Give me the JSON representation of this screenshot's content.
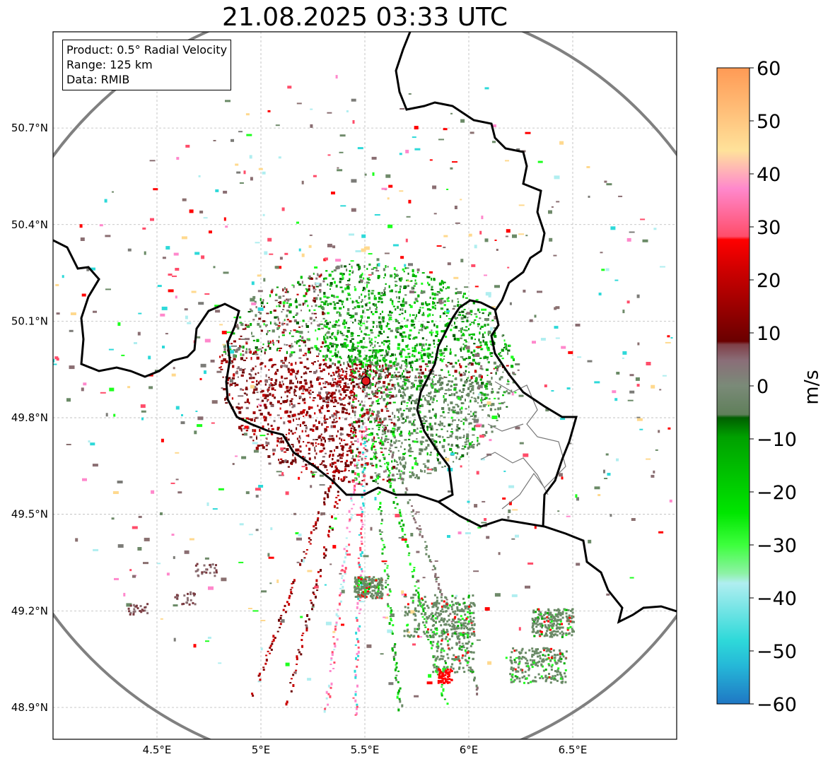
{
  "title": "21.08.2025 03:33 UTC",
  "info": {
    "product": "Product: 0.5° Radial Velocity",
    "range": "Range: 125 km",
    "source": "Data: RMIB"
  },
  "map": {
    "lon_range": [
      4.0,
      7.0
    ],
    "lat_range": [
      48.8,
      51.0
    ],
    "x_ticks": [
      {
        "value": 4.5,
        "label": "4.5°E"
      },
      {
        "value": 5.0,
        "label": "5°E"
      },
      {
        "value": 5.5,
        "label": "5.5°E"
      },
      {
        "value": 6.0,
        "label": "6°E"
      },
      {
        "value": 6.5,
        "label": "6.5°E"
      }
    ],
    "y_ticks": [
      {
        "value": 48.9,
        "label": "48.9°N"
      },
      {
        "value": 49.2,
        "label": "49.2°N"
      },
      {
        "value": 49.5,
        "label": "49.5°N"
      },
      {
        "value": 49.8,
        "label": "49.8°N"
      },
      {
        "value": 50.1,
        "label": "50.1°N"
      },
      {
        "value": 50.4,
        "label": "50.4°N"
      },
      {
        "value": 50.7,
        "label": "50.7°N"
      }
    ],
    "radar_site": {
      "lon": 5.505,
      "lat": 49.914
    },
    "range_km": 125
  },
  "colorbar": {
    "label": "m/s",
    "min": -60,
    "max": 60,
    "ticks": [
      "60",
      "50",
      "40",
      "30",
      "20",
      "10",
      "0",
      "−10",
      "−20",
      "−30",
      "−40",
      "−50",
      "−60"
    ],
    "colors": {
      "neg60": "#1f77c4",
      "neg50": "#2ed9d9",
      "neg40": "#b0eef0",
      "neg35": "#8ef2a6",
      "neg30": "#1eff1e",
      "neg20": "#00b000",
      "neg10": "#005f00",
      "zero_g": "#6a8a66",
      "zero_r": "#8a6e72",
      "pos10": "#6a0000",
      "pos20": "#c80000",
      "pos28": "#ff0000",
      "pos30": "#ff4d6a",
      "pos40": "#ff88cc",
      "pos45": "#ffb5b5",
      "pos50": "#ffd98e",
      "pos60": "#ff9a55"
    }
  }
}
